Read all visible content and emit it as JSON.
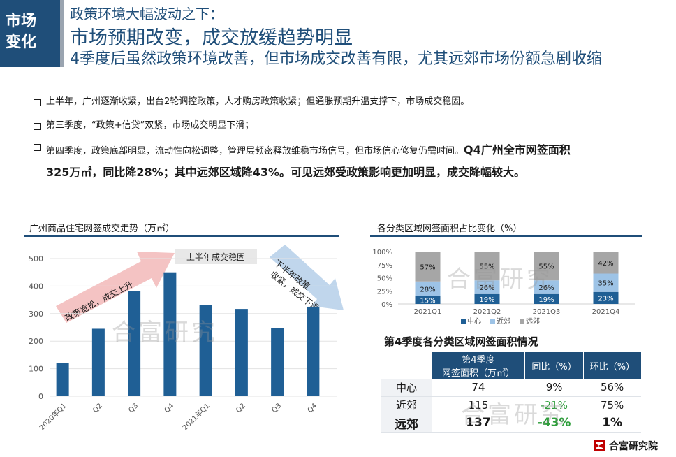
{
  "header": {
    "badge": "市场变化",
    "badge_line1": "市场",
    "badge_line2": "变化",
    "subtitle": "政策环境大幅波动之下：",
    "title": "市场预期改变，成交放缓趋势明显",
    "headline": "4季度后虽然政策环境改善，但市场成交改善有限，尤其远郊市场份额急剧收缩"
  },
  "bullets": {
    "b1": "上半年，广州逐渐收紧，出台2轮调控政策，人才购房政策收紧；但通胀预期升温支撑下，市场成交稳固。",
    "b2": "第三季度，“政策+信贷”双紧，市场成交明显下滑；",
    "b3_normal": "第四季度，政策底部明显，流动性向松调整，管理层频密释放维稳市场信号，但市场信心修复仍需时间。",
    "b3_bold_a": "Q4广州全市网签面积",
    "b3_bold_b": "325万㎡，同比降28%；其中远郊区域降43%。可见远郊受政策影响更加明显，成交降幅较大。"
  },
  "chart_left_title": "广州商品住宅网签成交走势（万㎡）",
  "chart_right_title": "各分类区域网签面积占比变化（%）",
  "chart_data": [
    {
      "type": "bar",
      "title": "广州商品住宅网签成交走势（万㎡）",
      "categories": [
        "2020年Q1",
        "Q2",
        "Q3",
        "Q4",
        "2021年Q1",
        "Q2",
        "Q3",
        "Q4"
      ],
      "values": [
        120,
        245,
        383,
        450,
        330,
        317,
        248,
        325
      ],
      "yticks": [
        0,
        100,
        200,
        300,
        400,
        500
      ],
      "ylim": [
        0,
        500
      ],
      "color": "#1f5f95",
      "annotations": {
        "up_arrow": "政策宽松，成交上升",
        "box": "上半年成交稳固",
        "down_arrow": "下半年政策收紧，成交下滑"
      }
    },
    {
      "type": "bar",
      "stacked": true,
      "title": "各分类区域网签面积占比变化（%）",
      "categories": [
        "2021Q1",
        "2021Q2",
        "2021Q3",
        "2021Q4"
      ],
      "yticks": [
        "0%",
        "25%",
        "50%",
        "75%",
        "100%"
      ],
      "ylim": [
        0,
        100
      ],
      "series": [
        {
          "name": "中心",
          "values": [
            15,
            19,
            19,
            23
          ],
          "color": "#1f5f95"
        },
        {
          "name": "近郊",
          "values": [
            28,
            26,
            26,
            35
          ],
          "color": "#9dc3e6"
        },
        {
          "name": "远郊",
          "values": [
            57,
            55,
            55,
            42
          ],
          "color": "#a6a6a6"
        }
      ],
      "legend": "bottom"
    }
  ],
  "table": {
    "title": "第4季度各分类区域网签面积情况",
    "headers": [
      "",
      "第4季度\n网签面积（万㎡）",
      "同比（%）",
      "环比（%）"
    ],
    "h1a": "第4季度",
    "h1b": "网签面积（万㎡）",
    "h2": "同比（%）",
    "h3": "环比（%）",
    "rows": [
      {
        "name": "中心",
        "area": "74",
        "yoy": "9%",
        "qoq": "56%"
      },
      {
        "name": "近郊",
        "area": "115",
        "yoy": "-21%",
        "qoq": "75%"
      },
      {
        "name": "远郊",
        "area": "137",
        "yoy": "-43%",
        "qoq": "1%"
      }
    ]
  },
  "watermark": "合富研究",
  "footer": "合富研究院",
  "colors": {
    "primary": "#1f4e79",
    "bar": "#1f5f95",
    "neg": "#2e9e3b",
    "arrow_up": "#f2b8b8",
    "arrow_down": "#b9d1ea"
  }
}
